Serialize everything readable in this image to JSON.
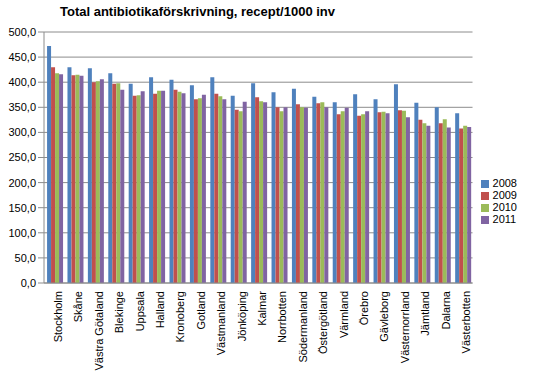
{
  "chart_data": {
    "type": "bar",
    "title": "Total antibiotikaförskrivning, recept/1000 inv",
    "categories": [
      "Stockholm",
      "Skåne",
      "Västra Götaland",
      "Blekinge",
      "Uppsala",
      "Halland",
      "Kronoberg",
      "Gotland",
      "Västmanland",
      "Jönköping",
      "Kalmar",
      "Norrbotten",
      "Södermanland",
      "Östergötland",
      "Värmland",
      "Örebro",
      "Gävleborg",
      "Västernorrland",
      "Jämtland",
      "Dalarna",
      "Västerbotten"
    ],
    "series": [
      {
        "name": "2008",
        "color": "#4f81bd",
        "values": [
          472,
          430,
          428,
          418,
          397,
          410,
          405,
          394,
          410,
          373,
          398,
          380,
          387,
          371,
          360,
          376,
          366,
          396,
          359,
          350,
          338
        ]
      },
      {
        "name": "2009",
        "color": "#c0504d",
        "values": [
          430,
          414,
          400,
          397,
          373,
          377,
          385,
          366,
          377,
          345,
          370,
          350,
          356,
          358,
          336,
          333,
          340,
          344,
          325,
          318,
          308
        ]
      },
      {
        "name": "2010",
        "color": "#9bbb59",
        "values": [
          418,
          415,
          402,
          398,
          374,
          383,
          381,
          368,
          372,
          342,
          362,
          342,
          350,
          360,
          342,
          336,
          341,
          343,
          318,
          326,
          313
        ]
      },
      {
        "name": "2011",
        "color": "#8064a2",
        "values": [
          416,
          413,
          406,
          385,
          382,
          383,
          378,
          375,
          366,
          361,
          360,
          350,
          349,
          350,
          349,
          342,
          338,
          330,
          313,
          310,
          311
        ]
      }
    ],
    "ylim": [
      0,
      500
    ],
    "yticks": [
      {
        "value": 0,
        "label": "0,0"
      },
      {
        "value": 50,
        "label": "50,0"
      },
      {
        "value": 100,
        "label": "100,0"
      },
      {
        "value": 150,
        "label": "150,0"
      },
      {
        "value": 200,
        "label": "200,0"
      },
      {
        "value": 250,
        "label": "250,0"
      },
      {
        "value": 300,
        "label": "300,0"
      },
      {
        "value": 350,
        "label": "350,0"
      },
      {
        "value": 400,
        "label": "400,0"
      },
      {
        "value": 450,
        "label": "450,0"
      },
      {
        "value": 500,
        "label": "500,0"
      }
    ],
    "grid": true,
    "legend": "right"
  }
}
